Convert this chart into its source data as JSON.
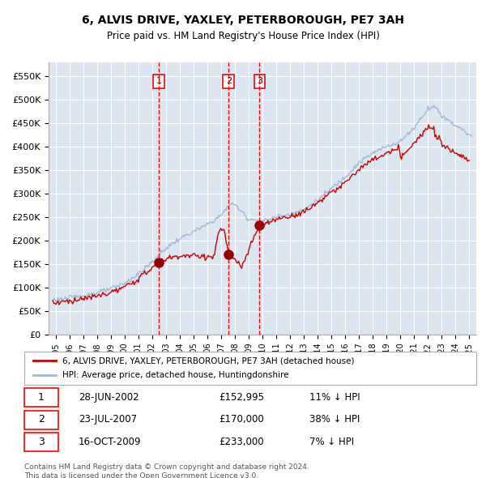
{
  "title1": "6, ALVIS DRIVE, YAXLEY, PETERBOROUGH, PE7 3AH",
  "title2": "Price paid vs. HM Land Registry's House Price Index (HPI)",
  "ylabel": "",
  "xlabel": "",
  "bg_color": "#dce6f1",
  "plot_bg_color": "#dce6f1",
  "grid_color": "#ffffff",
  "hpi_color": "#a0b8d8",
  "price_color": "#cc0000",
  "sale_marker_color": "#990000",
  "dashed_line_color": "#ff0000",
  "ylim": [
    0,
    580000
  ],
  "yticks": [
    0,
    50000,
    100000,
    150000,
    200000,
    250000,
    300000,
    350000,
    400000,
    450000,
    500000,
    550000
  ],
  "ytick_labels": [
    "£0",
    "£50K",
    "£100K",
    "£150K",
    "£200K",
    "£250K",
    "£300K",
    "£350K",
    "£400K",
    "£450K",
    "£500K",
    "£550K"
  ],
  "sales": [
    {
      "date_num": 2002.5,
      "price": 152995,
      "label": "1",
      "hpi_label": "11% ↓ HPI",
      "date_str": "28-JUN-2002",
      "price_str": "£152,995"
    },
    {
      "date_num": 2007.55,
      "price": 170000,
      "label": "2",
      "hpi_label": "38% ↓ HPI",
      "date_str": "23-JUL-2007",
      "price_str": "£170,000"
    },
    {
      "date_num": 2009.79,
      "price": 233000,
      "label": "3",
      "hpi_label": "7% ↓ HPI",
      "date_str": "16-OCT-2009",
      "price_str": "£233,000"
    }
  ],
  "legend_label_price": "6, ALVIS DRIVE, YAXLEY, PETERBOROUGH, PE7 3AH (detached house)",
  "legend_label_hpi": "HPI: Average price, detached house, Huntingdonshire",
  "footnote": "Contains HM Land Registry data © Crown copyright and database right 2024.\nThis data is licensed under the Open Government Licence v3.0.",
  "xlim_start": 1994.5,
  "xlim_end": 2025.5
}
